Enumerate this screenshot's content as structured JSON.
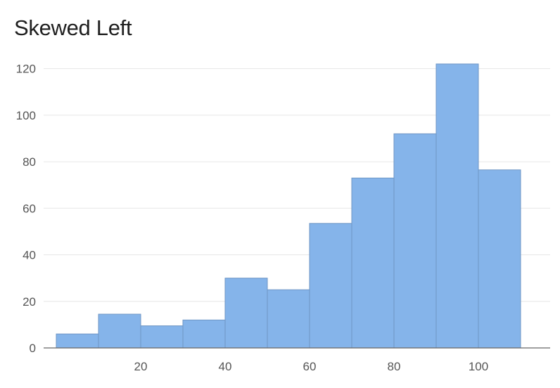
{
  "chart_data": {
    "type": "bar",
    "title": "Skewed Left",
    "xlabel": "",
    "ylabel": "",
    "bins": [
      {
        "start": 0,
        "end": 10,
        "value": 6
      },
      {
        "start": 10,
        "end": 20,
        "value": 14.5
      },
      {
        "start": 20,
        "end": 30,
        "value": 9.5
      },
      {
        "start": 30,
        "end": 40,
        "value": 12
      },
      {
        "start": 40,
        "end": 50,
        "value": 30
      },
      {
        "start": 50,
        "end": 60,
        "value": 25
      },
      {
        "start": 60,
        "end": 70,
        "value": 53.5
      },
      {
        "start": 70,
        "end": 80,
        "value": 73
      },
      {
        "start": 80,
        "end": 90,
        "value": 92
      },
      {
        "start": 90,
        "end": 100,
        "value": 122
      },
      {
        "start": 100,
        "end": 110,
        "value": 76.5
      }
    ],
    "x_ticks": [
      20,
      40,
      60,
      80,
      100
    ],
    "y_ticks": [
      0,
      20,
      40,
      60,
      80,
      100,
      120
    ],
    "xlim": [
      -3,
      117
    ],
    "ylim": [
      0,
      122
    ],
    "grid": true,
    "colors": {
      "bar_fill": "#85b4ea",
      "bar_stroke": "#6f96c4"
    }
  }
}
